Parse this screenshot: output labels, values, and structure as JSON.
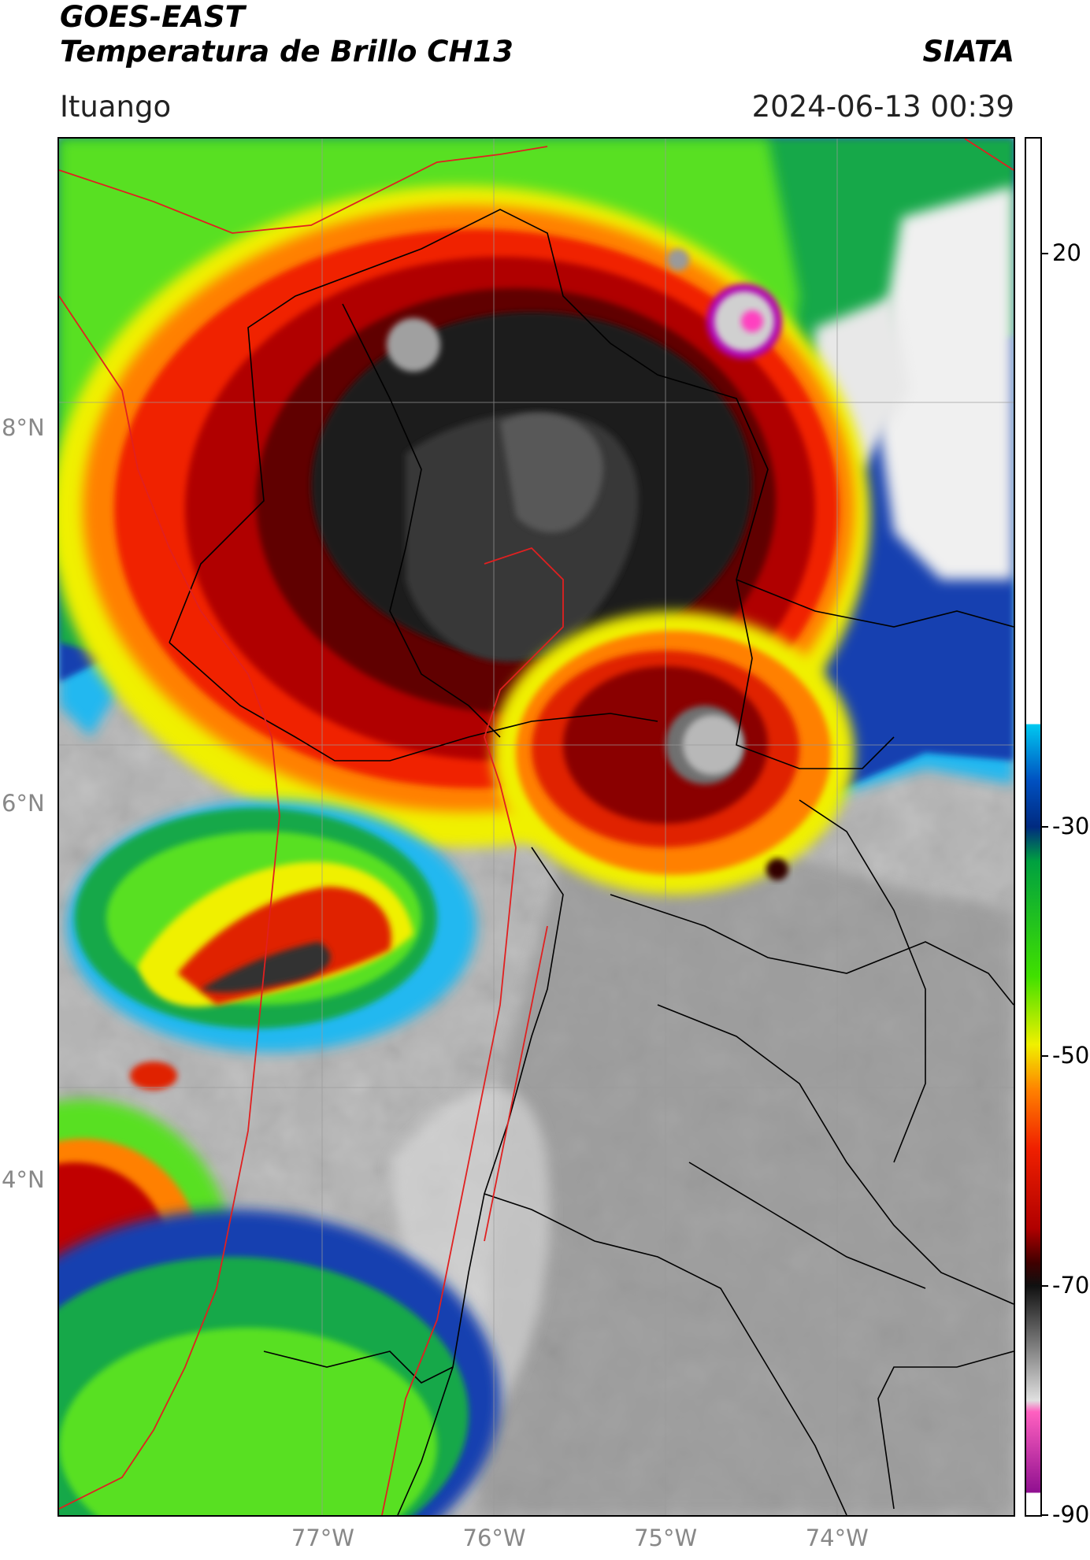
{
  "header": {
    "title_line1": "GOES-EAST",
    "title_line2": "Temperatura de Brillo CH13",
    "agency": "SIATA",
    "location": "Ituango",
    "timestamp": "2024-06-13 00:39"
  },
  "map": {
    "lat_labels": [
      {
        "value": 8,
        "label": "8°N"
      },
      {
        "value": 6,
        "label": "6°N"
      },
      {
        "value": 4,
        "label": "4°N"
      }
    ],
    "lon_labels": [
      {
        "value": -77,
        "label": "77°W"
      },
      {
        "value": -76,
        "label": "76°W"
      },
      {
        "value": -75,
        "label": "75°W"
      },
      {
        "value": -74,
        "label": "74°W"
      }
    ],
    "extent": {
      "lon_min": -78.53,
      "lon_max": -72.96,
      "lat_min": 2.22,
      "lat_max": 9.54
    },
    "colors": {
      "warm_ground": "#b0b0b0",
      "cold_core": "#202020",
      "border_country": "#e02020",
      "border_admin": "#000000"
    }
  },
  "colorbar": {
    "min": -90,
    "max": 30,
    "ticks": [
      {
        "value": 20,
        "label": "20"
      },
      {
        "value": -30,
        "label": "-30"
      },
      {
        "value": -50,
        "label": "-50"
      },
      {
        "value": -70,
        "label": "-70"
      },
      {
        "value": -90,
        "label": "-90"
      }
    ],
    "stops": [
      {
        "value": 30,
        "color": "#ffffff"
      },
      {
        "value": -21,
        "color": "#ffffff"
      },
      {
        "value": -21.1,
        "color": "#00c8f0"
      },
      {
        "value": -26,
        "color": "#0050c0"
      },
      {
        "value": -30,
        "color": "#002a80"
      },
      {
        "value": -33,
        "color": "#00a040"
      },
      {
        "value": -43,
        "color": "#40e000"
      },
      {
        "value": -49,
        "color": "#f0f000"
      },
      {
        "value": -53,
        "color": "#ff8000"
      },
      {
        "value": -58,
        "color": "#f02000"
      },
      {
        "value": -65,
        "color": "#b00000"
      },
      {
        "value": -68,
        "color": "#400000"
      },
      {
        "value": -70,
        "color": "#101010"
      },
      {
        "value": -80,
        "color": "#e0e0e0"
      },
      {
        "value": -81,
        "color": "#ff60c0"
      },
      {
        "value": -88,
        "color": "#901090"
      },
      {
        "value": -88.1,
        "color": "#ffffff"
      },
      {
        "value": -90,
        "color": "#ffffff"
      }
    ]
  }
}
